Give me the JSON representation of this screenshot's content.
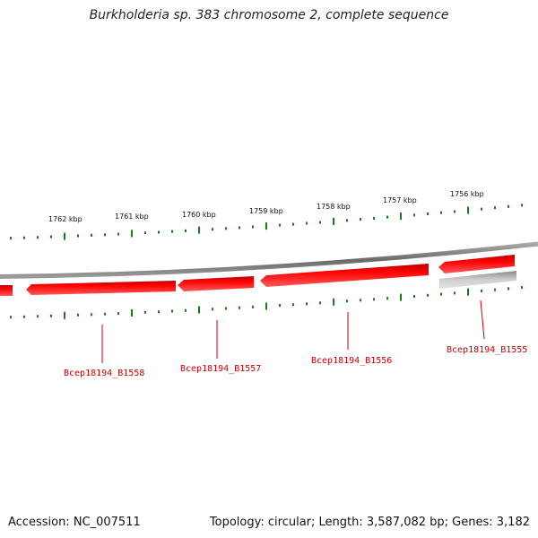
{
  "title": "Burkholderia sp. 383 chromosome 2, complete sequence",
  "ticks": [
    "1762 kbp",
    "1761 kbp",
    "1760 kbp",
    "1759 kbp",
    "1758 kbp",
    "1757 kbp",
    "1756 kbp"
  ],
  "genes": [
    "Bcep18194_B1558",
    "Bcep18194_B1557",
    "Bcep18194_B1556",
    "Bcep18194_B1555"
  ],
  "footer": {
    "accession": "Accession: NC_007511",
    "summary": "Topology: circular; Length: 3,587,082 bp; Genes: 3,182"
  },
  "colors": {
    "gene_fill": "#ff0000",
    "gene_shadow": "#ff7070",
    "label": "#cc0000",
    "tick": "#1a7a1a",
    "backbone": "#808080",
    "pseudo_gene": "#bfbfbf"
  }
}
